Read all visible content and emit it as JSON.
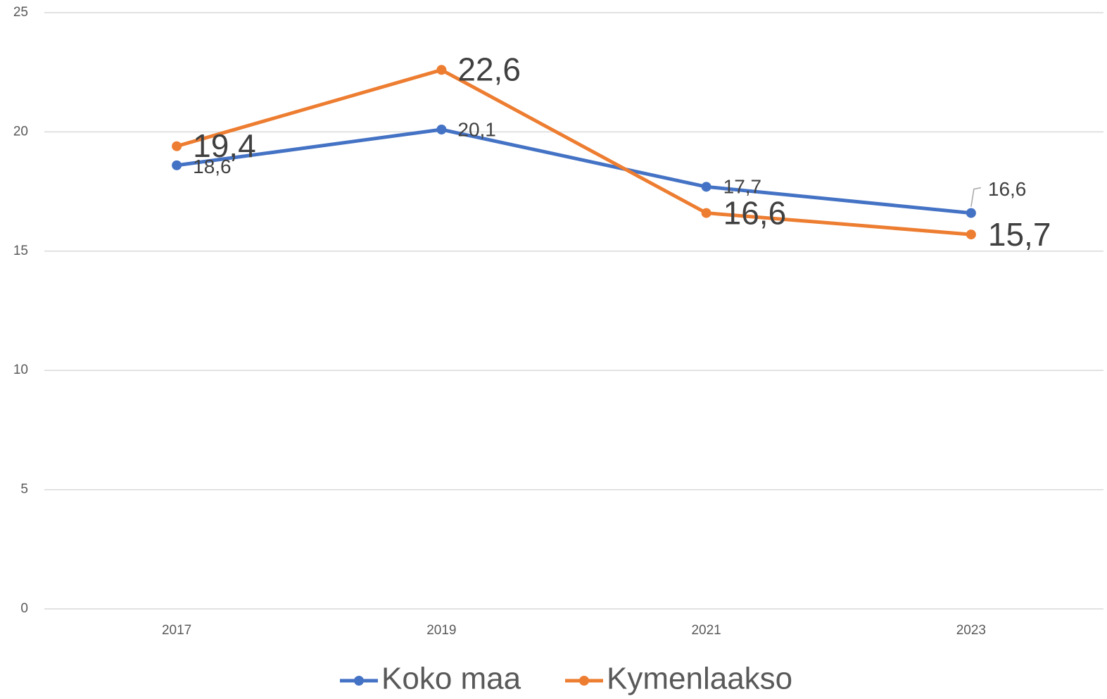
{
  "chart_data": {
    "type": "line",
    "categories": [
      "2017",
      "2019",
      "2021",
      "2023"
    ],
    "series": [
      {
        "name": "Koko maa",
        "color": "#4472c4",
        "values": [
          18.6,
          20.1,
          17.7,
          16.6
        ],
        "value_labels": [
          "18,6",
          "20,1",
          "17,7",
          "16,6"
        ]
      },
      {
        "name": "Kymenlaakso",
        "color": "#ed7d31",
        "values": [
          19.4,
          22.6,
          16.6,
          15.7
        ],
        "value_labels": [
          "19,4",
          "22,6",
          "16,6",
          "15,7"
        ]
      }
    ],
    "ylim": [
      0,
      25
    ],
    "yticks": [
      0,
      5,
      10,
      15,
      20,
      25
    ],
    "grid": true,
    "legend": "bottom"
  }
}
